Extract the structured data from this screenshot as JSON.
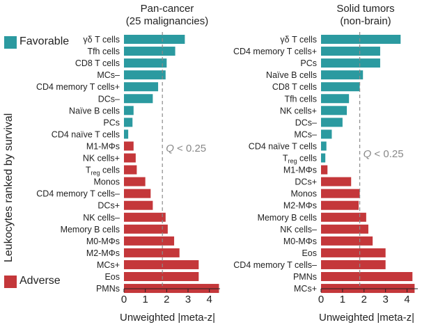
{
  "colors": {
    "favorable": "#2b9aa0",
    "adverse": "#c4373a"
  },
  "legend": {
    "favorable": "Favorable",
    "adverse": "Adverse"
  },
  "ylabel": "Leukocytes ranked by survival",
  "chart_data": [
    {
      "type": "bar",
      "orientation": "horizontal",
      "title": "Pan-cancer",
      "subtitle": "(25 malignancies)",
      "xlabel": "Unweighted |meta-z|",
      "xlim": [
        0,
        4.5
      ],
      "xticks": [
        0,
        1,
        2,
        3,
        4
      ],
      "threshold": {
        "value": 1.8,
        "label": "Q < 0.25"
      },
      "categories": [
        "γδ T cells",
        "Tfh cells",
        "CD8 T cells",
        "MCs–",
        "CD4 memory T cells+",
        "DCs–",
        "Naïve B cells",
        "PCs",
        "CD4 naïve T cells",
        "M1-MΦs",
        "NK cells+",
        "Treg cells",
        "Monos",
        "CD4 memory T cells–",
        "DCs+",
        "NK cells–",
        "Memory B cells",
        "M0-MΦs",
        "M2-MΦs",
        "MCs+",
        "Eos",
        "PMNs"
      ],
      "values": [
        2.85,
        2.4,
        2.0,
        1.95,
        1.6,
        1.35,
        0.45,
        0.4,
        0.2,
        0.45,
        0.55,
        0.6,
        1.0,
        1.25,
        1.35,
        1.95,
        2.05,
        2.35,
        2.6,
        3.5,
        3.5,
        4.45
      ],
      "groups": [
        "favorable",
        "favorable",
        "favorable",
        "favorable",
        "favorable",
        "favorable",
        "favorable",
        "favorable",
        "favorable",
        "adverse",
        "adverse",
        "adverse",
        "adverse",
        "adverse",
        "adverse",
        "adverse",
        "adverse",
        "adverse",
        "adverse",
        "adverse",
        "adverse",
        "adverse"
      ]
    },
    {
      "type": "bar",
      "orientation": "horizontal",
      "title": "Solid tumors",
      "subtitle": "(non-brain)",
      "xlabel": "Unweighted |meta-z|",
      "xlim": [
        0,
        4.5
      ],
      "xticks": [
        0,
        1,
        2,
        3,
        4
      ],
      "threshold": {
        "value": 1.8,
        "label": "Q < 0.25"
      },
      "categories": [
        "γδ T cells",
        "CD4 memory T cells+",
        "PCs",
        "Naïve B cells",
        "CD8 T cells",
        "Tfh cells",
        "NK cells+",
        "DCs–",
        "MCs–",
        "CD4 naïve T cells",
        "Treg cells",
        "M1-MΦs",
        "DCs+",
        "Monos",
        "M2-MΦs",
        "Memory B cells",
        "NK cells–",
        "M0-MΦs",
        "Eos",
        "CD4 memory T cells–",
        "PMNs",
        "MCs+"
      ],
      "values": [
        3.7,
        2.75,
        2.75,
        1.95,
        1.8,
        1.3,
        1.2,
        1.0,
        0.5,
        0.25,
        0.2,
        0.3,
        1.4,
        1.8,
        1.75,
        2.1,
        2.2,
        2.4,
        3.0,
        3.0,
        4.25,
        4.35
      ],
      "groups": [
        "favorable",
        "favorable",
        "favorable",
        "favorable",
        "favorable",
        "favorable",
        "favorable",
        "favorable",
        "favorable",
        "favorable",
        "favorable",
        "adverse",
        "adverse",
        "adverse",
        "adverse",
        "adverse",
        "adverse",
        "adverse",
        "adverse",
        "adverse",
        "adverse",
        "adverse"
      ]
    }
  ]
}
